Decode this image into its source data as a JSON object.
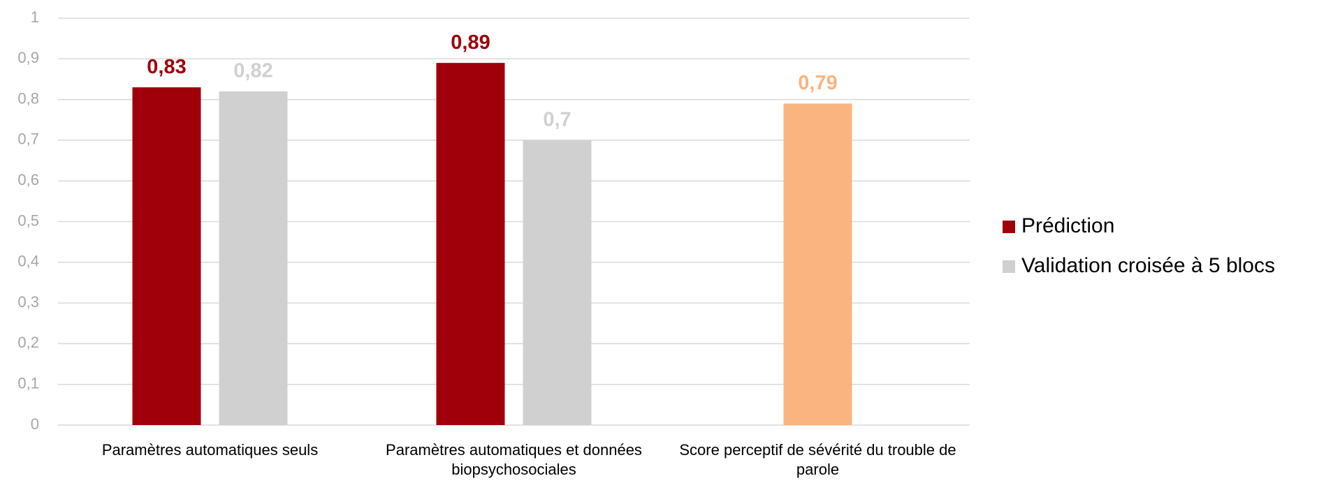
{
  "chart_data": {
    "type": "bar",
    "categories": [
      "Paramètres automatiques seuls",
      "Paramètres automatiques et données biopsychosociales",
      "Score perceptif de sévérité du trouble de parole"
    ],
    "series": [
      {
        "name": "Prédiction",
        "color": "#a0000a",
        "values": [
          0.83,
          0.89,
          null
        ],
        "value_labels": [
          "0,83",
          "0,89",
          null
        ]
      },
      {
        "name": "Validation croisée à 5 blocs",
        "color": "#d0d0d0",
        "values": [
          0.82,
          0.7,
          null
        ],
        "value_labels": [
          "0,82",
          "0,7",
          null
        ]
      },
      {
        "color": "#f9b47f",
        "values": [
          null,
          null,
          0.79
        ],
        "value_labels": [
          null,
          null,
          "0,79"
        ]
      }
    ],
    "ylim": [
      0,
      1
    ],
    "yticks": [
      0,
      {
        "value": 0.1,
        "label": "0,1"
      },
      {
        "value": 0.2,
        "label": "0,2"
      },
      {
        "value": 0.3,
        "label": "0,3"
      },
      {
        "value": 0.4,
        "label": "0,4"
      },
      {
        "value": 0.5,
        "label": "0,5"
      },
      {
        "value": 0.6,
        "label": "0,6"
      },
      {
        "value": 0.7,
        "label": "0,7"
      },
      {
        "value": 0.8,
        "label": "0,8"
      },
      {
        "value": 0.9,
        "label": "0,9"
      },
      1
    ],
    "grid": true,
    "legend": "right"
  }
}
